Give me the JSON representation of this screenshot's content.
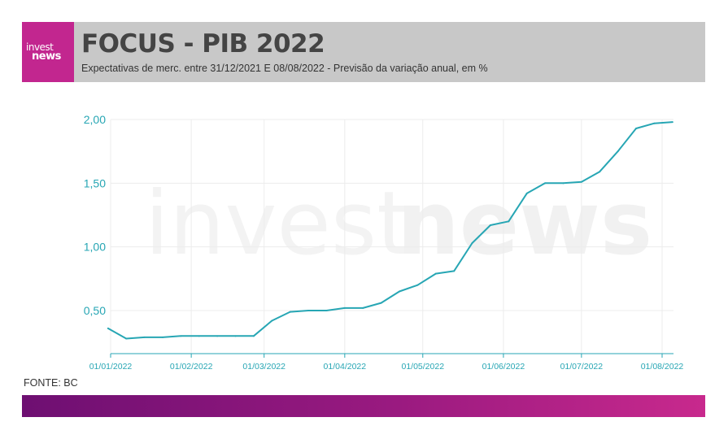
{
  "header": {
    "logo_top": "invest",
    "logo_bottom": "news",
    "title": "FOCUS - PIB 2022",
    "subtitle": "Expectativas de merc. entre 31/12/2021 E 08/08/2022 - Previsão da variação anual, em %"
  },
  "watermark": {
    "left": "invest",
    "right": "news"
  },
  "source": "FONTE: BC",
  "colors": {
    "line": "#27a6b4",
    "axis_text": "#27a6b4",
    "grid": "#ececec",
    "logo_bg": "#c2268f",
    "header_bg": "#c8c8c8",
    "gradient_start": "#6e0f72",
    "gradient_end": "#c8298d"
  },
  "chart_data": {
    "type": "line",
    "title": "",
    "xlabel": "",
    "ylabel": "",
    "ylim": [
      0.16,
      2.0
    ],
    "y_ticks": [
      {
        "value": 0.5,
        "label": "0,50"
      },
      {
        "value": 1.0,
        "label": "1,00"
      },
      {
        "value": 1.5,
        "label": "1,50"
      },
      {
        "value": 2.0,
        "label": "2,00"
      }
    ],
    "x_range": [
      "2021-12-31",
      "2022-08-08"
    ],
    "x_ticks": [
      {
        "date": "2022-01-01",
        "label": "01/01/2022"
      },
      {
        "date": "2022-02-01",
        "label": "01/02/2022"
      },
      {
        "date": "2022-03-01",
        "label": "01/03/2022"
      },
      {
        "date": "2022-04-01",
        "label": "01/04/2022"
      },
      {
        "date": "2022-05-01",
        "label": "01/05/2022"
      },
      {
        "date": "2022-06-01",
        "label": "01/06/2022"
      },
      {
        "date": "2022-07-01",
        "label": "01/07/2022"
      },
      {
        "date": "2022-08-01",
        "label": "01/08/2022"
      }
    ],
    "grid": true,
    "series": [
      {
        "points": [
          {
            "x": "2021-12-31",
            "y": 0.36
          },
          {
            "x": "2022-01-07",
            "y": 0.28
          },
          {
            "x": "2022-01-14",
            "y": 0.29
          },
          {
            "x": "2022-01-21",
            "y": 0.29
          },
          {
            "x": "2022-01-28",
            "y": 0.3
          },
          {
            "x": "2022-02-04",
            "y": 0.3
          },
          {
            "x": "2022-02-11",
            "y": 0.3
          },
          {
            "x": "2022-02-18",
            "y": 0.3
          },
          {
            "x": "2022-02-25",
            "y": 0.3
          },
          {
            "x": "2022-03-04",
            "y": 0.42
          },
          {
            "x": "2022-03-11",
            "y": 0.49
          },
          {
            "x": "2022-03-18",
            "y": 0.5
          },
          {
            "x": "2022-03-25",
            "y": 0.5
          },
          {
            "x": "2022-04-01",
            "y": 0.52
          },
          {
            "x": "2022-04-08",
            "y": 0.52
          },
          {
            "x": "2022-04-15",
            "y": 0.56
          },
          {
            "x": "2022-04-22",
            "y": 0.65
          },
          {
            "x": "2022-04-29",
            "y": 0.7
          },
          {
            "x": "2022-05-06",
            "y": 0.79
          },
          {
            "x": "2022-05-13",
            "y": 0.81
          },
          {
            "x": "2022-05-20",
            "y": 1.03
          },
          {
            "x": "2022-05-27",
            "y": 1.17
          },
          {
            "x": "2022-06-03",
            "y": 1.2
          },
          {
            "x": "2022-06-10",
            "y": 1.42
          },
          {
            "x": "2022-06-17",
            "y": 1.5
          },
          {
            "x": "2022-06-24",
            "y": 1.5
          },
          {
            "x": "2022-07-01",
            "y": 1.51
          },
          {
            "x": "2022-07-08",
            "y": 1.59
          },
          {
            "x": "2022-07-15",
            "y": 1.75
          },
          {
            "x": "2022-07-22",
            "y": 1.93
          },
          {
            "x": "2022-07-29",
            "y": 1.97
          },
          {
            "x": "2022-08-05",
            "y": 1.98
          }
        ]
      }
    ]
  }
}
